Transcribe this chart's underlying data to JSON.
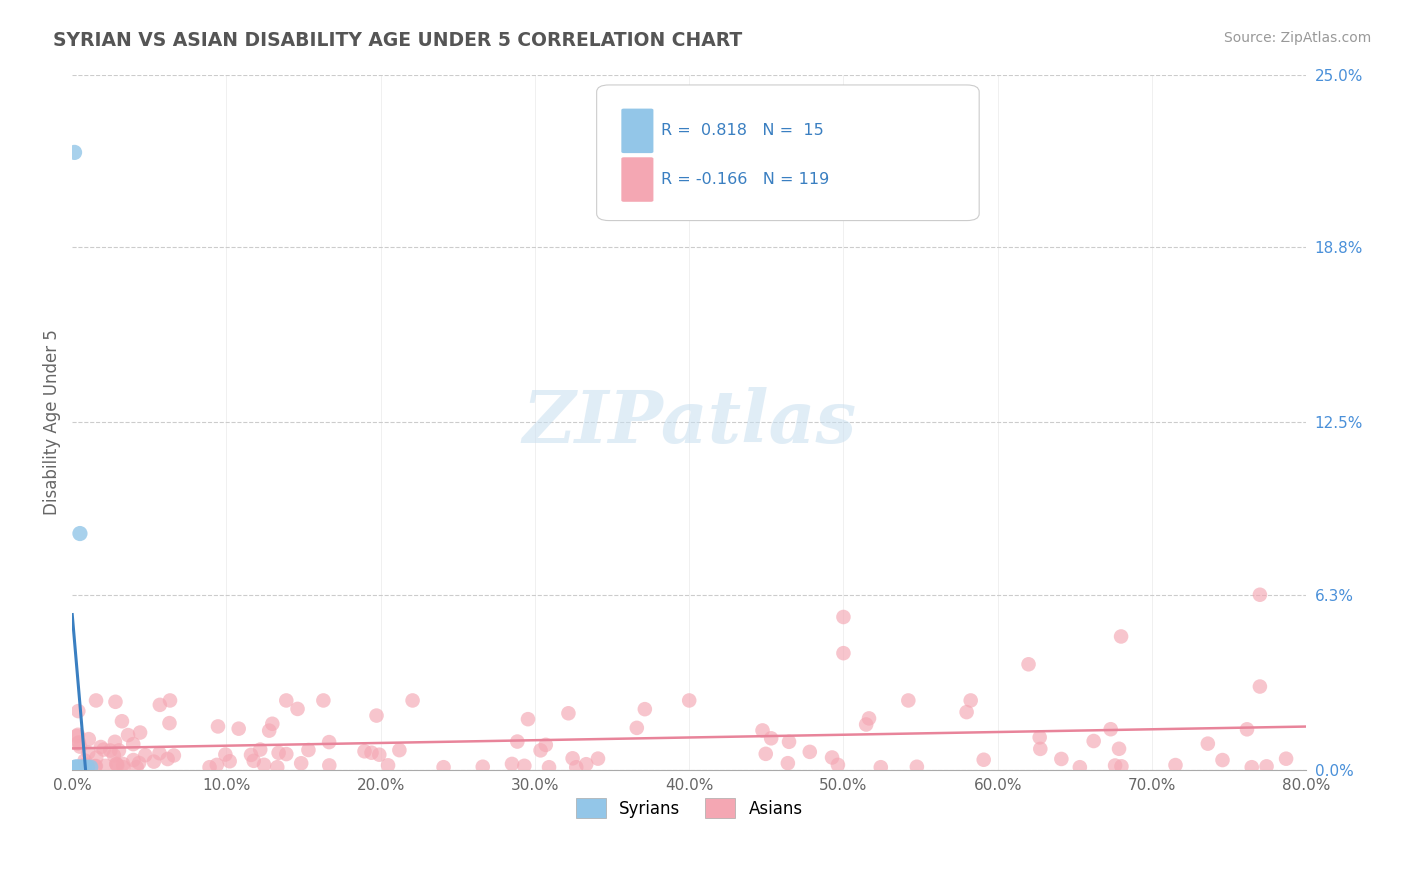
{
  "title": "SYRIAN VS ASIAN DISABILITY AGE UNDER 5 CORRELATION CHART",
  "source": "Source: ZipAtlas.com",
  "ylabel": "Disability Age Under 5",
  "xlim": [
    0.0,
    0.8
  ],
  "ylim": [
    0.0,
    0.25
  ],
  "ytick_vals": [
    0.0,
    0.063,
    0.125,
    0.188,
    0.25
  ],
  "ytick_labels": [
    "0.0%",
    "6.3%",
    "12.5%",
    "18.8%",
    "25.0%"
  ],
  "xtick_vals": [
    0.0,
    0.1,
    0.2,
    0.3,
    0.4,
    0.5,
    0.6,
    0.7,
    0.8
  ],
  "xtick_labels": [
    "0.0%",
    "10.0%",
    "20.0%",
    "30.0%",
    "40.0%",
    "50.0%",
    "60.0%",
    "70.0%",
    "80.0%"
  ],
  "syrian_color": "#93c6e8",
  "asian_color": "#f4a7b3",
  "syrian_line_color": "#3a7fc1",
  "asian_line_color": "#e8849a",
  "syrian_dash_color": "#93c6e8",
  "syrian_R": "0.818",
  "syrian_N": "15",
  "asian_R": "-0.166",
  "asian_N": "119",
  "watermark": "ZIPatlas",
  "background_color": "#ffffff",
  "grid_color": "#cccccc",
  "syrian_seed": 42,
  "asian_seed": 17
}
